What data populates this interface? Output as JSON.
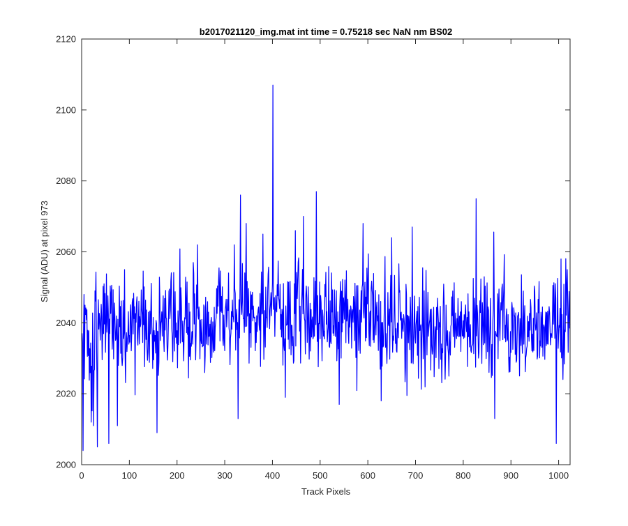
{
  "chart_data": {
    "type": "line",
    "title": "b2017021120_img.mat int time = 0.75218 sec  NaN nm BS02",
    "xlabel": "Track Pixels",
    "ylabel": "Signal (ADU) at pixel 973",
    "xlim": [
      0,
      1024
    ],
    "ylim": [
      2000,
      2120
    ],
    "xticks": [
      0,
      100,
      200,
      300,
      400,
      500,
      600,
      700,
      800,
      900,
      1000
    ],
    "yticks": [
      2000,
      2020,
      2040,
      2060,
      2080,
      2100,
      2120
    ],
    "xtick_labels": [
      "0",
      "100",
      "200",
      "300",
      "400",
      "500",
      "600",
      "700",
      "800",
      "900",
      "1000"
    ],
    "ytick_labels": [
      "2000",
      "2020",
      "2040",
      "2060",
      "2080",
      "2100",
      "2120"
    ],
    "grid": false,
    "legend": "none",
    "series_color": "#0000ff",
    "series": [
      {
        "x_start": 1,
        "x_step": 1,
        "count": 1024,
        "baseline_mean": 2039,
        "noise_std": 7,
        "spikes": [
          {
            "x": 3,
            "y": 2004
          },
          {
            "x": 5,
            "y": 2048
          },
          {
            "x": 20,
            "y": 2012
          },
          {
            "x": 25,
            "y": 2011
          },
          {
            "x": 28,
            "y": 2049
          },
          {
            "x": 33,
            "y": 2005
          },
          {
            "x": 47,
            "y": 2051
          },
          {
            "x": 57,
            "y": 2006
          },
          {
            "x": 75,
            "y": 2011
          },
          {
            "x": 90,
            "y": 2055
          },
          {
            "x": 158,
            "y": 2009
          },
          {
            "x": 243,
            "y": 2062
          },
          {
            "x": 320,
            "y": 2062
          },
          {
            "x": 328,
            "y": 2013
          },
          {
            "x": 333,
            "y": 2076
          },
          {
            "x": 345,
            "y": 2068
          },
          {
            "x": 380,
            "y": 2065
          },
          {
            "x": 401,
            "y": 2107
          },
          {
            "x": 427,
            "y": 2019
          },
          {
            "x": 448,
            "y": 2066
          },
          {
            "x": 465,
            "y": 2070
          },
          {
            "x": 492,
            "y": 2077
          },
          {
            "x": 540,
            "y": 2017
          },
          {
            "x": 590,
            "y": 2068
          },
          {
            "x": 628,
            "y": 2018
          },
          {
            "x": 650,
            "y": 2064
          },
          {
            "x": 693,
            "y": 2067
          },
          {
            "x": 827,
            "y": 2075
          },
          {
            "x": 866,
            "y": 2013
          },
          {
            "x": 995,
            "y": 2006
          },
          {
            "x": 1005,
            "y": 2058
          },
          {
            "x": 1018,
            "y": 2055
          }
        ]
      }
    ]
  }
}
